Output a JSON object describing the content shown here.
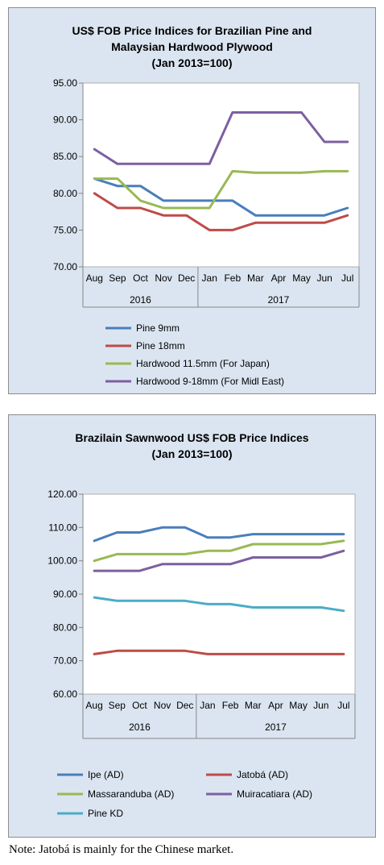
{
  "chart_data": [
    {
      "type": "line",
      "title": [
        "US$ FOB Price Indices for Brazilian Pine and",
        "Malaysian Hardwood Plywood",
        "(Jan 2013=100)"
      ],
      "categories": [
        "Aug",
        "Sep",
        "Oct",
        "Nov",
        "Dec",
        "Jan",
        "Feb",
        "Mar",
        "Apr",
        "May",
        "Jun",
        "Jul"
      ],
      "year_groups": [
        {
          "label": "2016",
          "count": 5
        },
        {
          "label": "2017",
          "count": 7
        }
      ],
      "ylim": [
        70,
        95
      ],
      "yticks": [
        "70.00",
        "75.00",
        "80.00",
        "85.00",
        "90.00",
        "95.00"
      ],
      "grid": false,
      "legend_position": "bottom",
      "series": [
        {
          "name": "Pine 9mm",
          "color": "#4a7ebb",
          "values": [
            82,
            81,
            81,
            79,
            79,
            79,
            79,
            77,
            77,
            77,
            77,
            78
          ]
        },
        {
          "name": "Pine 18mm",
          "color": "#be4b48",
          "values": [
            80,
            78,
            78,
            77,
            77,
            75,
            75,
            76,
            76,
            76,
            76,
            77
          ]
        },
        {
          "name": "Hardwood 11.5mm (For Japan)",
          "color": "#98b954",
          "values": [
            82,
            82,
            79,
            78,
            78,
            78,
            83,
            82.8,
            82.8,
            82.8,
            83,
            83
          ]
        },
        {
          "name": "Hardwood 9-18mm (For Midl East)",
          "color": "#7d5fa0",
          "values": [
            86,
            84,
            84,
            84,
            84,
            84,
            91,
            91,
            91,
            91,
            87,
            87
          ]
        }
      ]
    },
    {
      "type": "line",
      "title": [
        "Brazilain Sawnwood US$ FOB Price Indices",
        "(Jan 2013=100)"
      ],
      "categories": [
        "Aug",
        "Sep",
        "Oct",
        "Nov",
        "Dec",
        "Jan",
        "Feb",
        "Mar",
        "Apr",
        "May",
        "Jun",
        "Jul"
      ],
      "year_groups": [
        {
          "label": "2016",
          "count": 5
        },
        {
          "label": "2017",
          "count": 7
        }
      ],
      "ylim": [
        60,
        120
      ],
      "yticks": [
        "60.00",
        "70.00",
        "80.00",
        "90.00",
        "100.00",
        "110.00",
        "120.00"
      ],
      "grid": false,
      "legend_position": "bottom",
      "series": [
        {
          "name": "Ipe (AD)",
          "color": "#4a7ebb",
          "values": [
            106,
            108.5,
            108.5,
            110,
            110,
            107,
            107,
            108,
            108,
            108,
            108,
            108
          ]
        },
        {
          "name": "Jatobá (AD)",
          "color": "#be4b48",
          "values": [
            72,
            73,
            73,
            73,
            73,
            72,
            72,
            72,
            72,
            72,
            72,
            72
          ]
        },
        {
          "name": "Massaranduba (AD)",
          "color": "#98b954",
          "values": [
            100,
            102,
            102,
            102,
            102,
            103,
            103,
            105,
            105,
            105,
            105,
            106
          ]
        },
        {
          "name": "Muiracatiara (AD)",
          "color": "#7d5fa0",
          "values": [
            97,
            97,
            97,
            99,
            99,
            99,
            99,
            101,
            101,
            101,
            101,
            103
          ]
        },
        {
          "name": "Pine KD",
          "color": "#4bacc6",
          "values": [
            89,
            88,
            88,
            88,
            88,
            87,
            87,
            86,
            86,
            86,
            86,
            85
          ]
        }
      ]
    }
  ],
  "note": "Note: Jatobá is mainly for the Chinese market."
}
